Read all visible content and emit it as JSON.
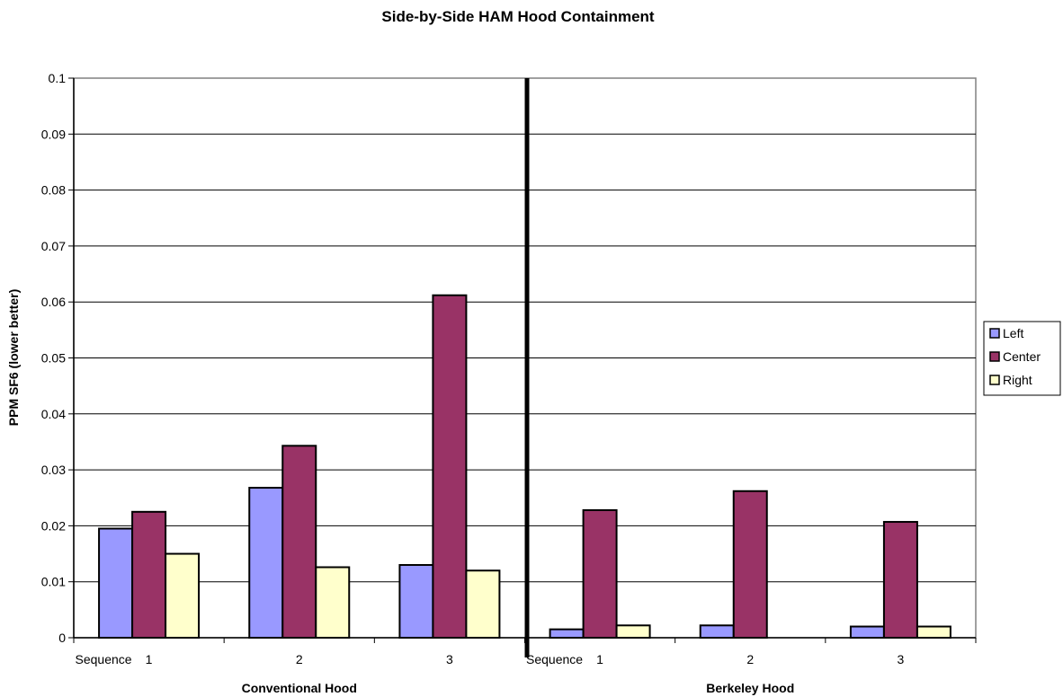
{
  "chart_data": {
    "type": "bar",
    "title": "Side-by-Side HAM Hood Containment",
    "ylabel": "PPM SF6 (lower better)",
    "ylim": [
      0,
      0.1
    ],
    "yticks": [
      "0",
      "0.01",
      "0.02",
      "0.03",
      "0.04",
      "0.05",
      "0.06",
      "0.07",
      "0.08",
      "0.09",
      "0.1"
    ],
    "grid": true,
    "legend_position": "right",
    "groups": [
      {
        "label": "Conventional Hood",
        "categories": [
          "1",
          "2",
          "3"
        ]
      },
      {
        "label": "Berkeley Hood",
        "categories": [
          "1",
          "2",
          "3"
        ]
      }
    ],
    "category_prefix": "Sequence",
    "series": [
      {
        "name": "Left",
        "color": "#9999ff",
        "values": [
          0.0195,
          0.0268,
          0.013,
          0.0015,
          0.0022,
          0.002
        ]
      },
      {
        "name": "Center",
        "color": "#993366",
        "values": [
          0.0225,
          0.0343,
          0.0612,
          0.0228,
          0.0262,
          0.0207
        ]
      },
      {
        "name": "Right",
        "color": "#ffffcc",
        "values": [
          0.015,
          0.0126,
          0.012,
          0.0022,
          0,
          0.002
        ]
      }
    ]
  }
}
